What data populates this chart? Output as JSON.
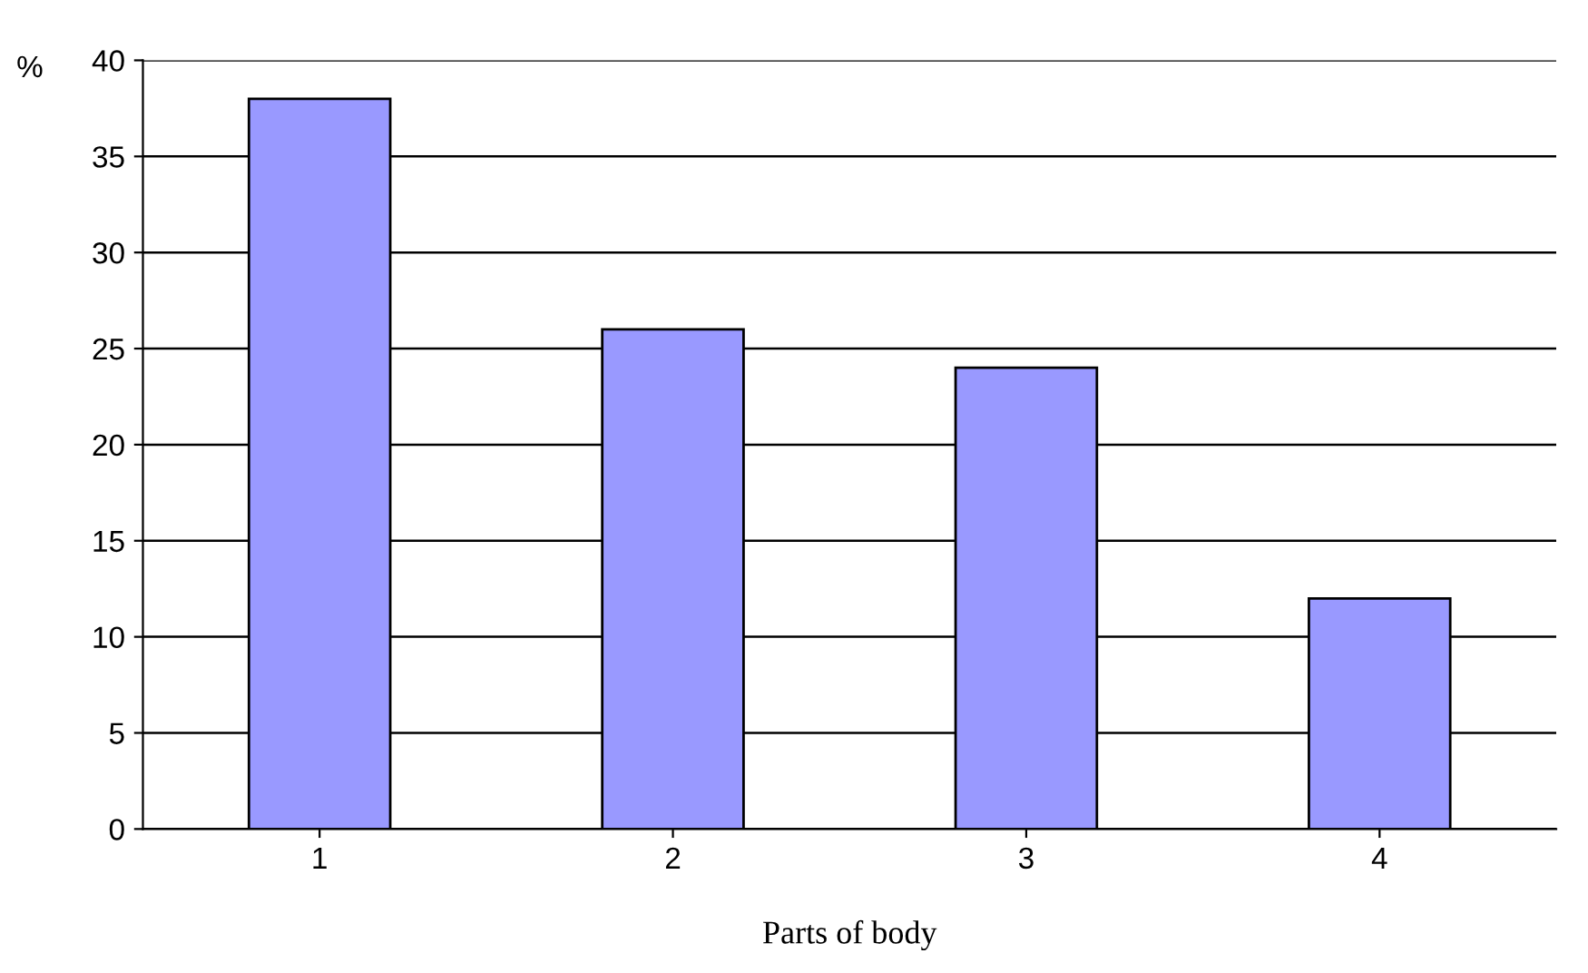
{
  "chart_data": {
    "type": "bar",
    "ylabel": "%",
    "xlabel": "Parts of body",
    "categories": [
      "1",
      "2",
      "3",
      "4"
    ],
    "values": [
      38,
      26,
      24,
      12
    ],
    "color": "#9999ff",
    "ylim": [
      0,
      40
    ],
    "yticks": [
      0,
      5,
      10,
      15,
      20,
      25,
      30,
      35,
      40
    ],
    "grid": "y",
    "legend": false
  }
}
